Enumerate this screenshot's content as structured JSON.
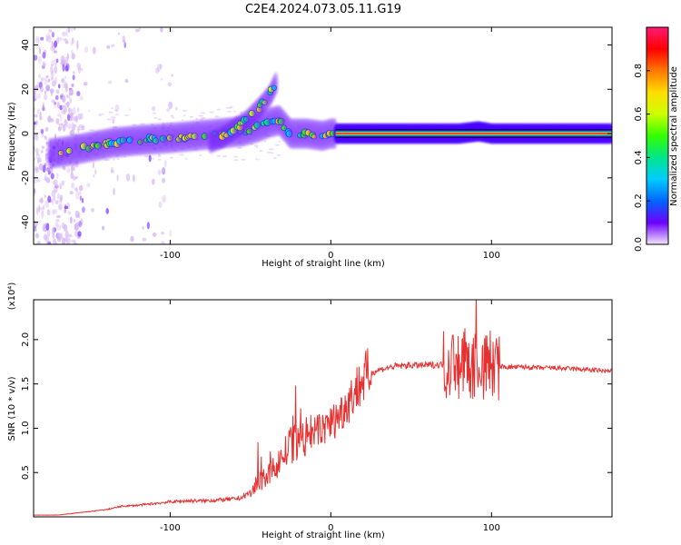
{
  "page_title": "C2E4.2024.073.05.11.G19",
  "chart_data": [
    {
      "type": "heatmap",
      "title": "C2E4.2024.073.05.11.G19",
      "xlabel": "Height of straight line (km)",
      "ylabel": "Frequency (Hz)",
      "xlim": [
        -185,
        175
      ],
      "ylim": [
        -50,
        48
      ],
      "x_ticks": [
        -100,
        0,
        100
      ],
      "x_tick_labels": [
        "-100",
        "0",
        "100"
      ],
      "y_ticks": [
        -40,
        -20,
        0,
        20,
        40
      ],
      "y_tick_labels": [
        "-40",
        "-20",
        "0",
        "20",
        "40"
      ],
      "colorbar": {
        "label": "Normalized spectral amplitude",
        "range": [
          0,
          1
        ],
        "ticks": [
          0.0,
          0.2,
          0.4,
          0.6,
          0.8
        ],
        "tick_labels": [
          "0.0",
          "0.2",
          "0.4",
          "0.6",
          "0.8"
        ],
        "colormap": [
          "#f5e6fa",
          "#6a00ff",
          "#0066ff",
          "#00ccff",
          "#00e68a",
          "#33ff00",
          "#ccff00",
          "#ffdd00",
          "#ff7700",
          "#ff0000",
          "#ff1a75"
        ]
      },
      "ridges": [
        {
          "x": [
            -175,
            -165,
            -150,
            -135,
            -120,
            -100,
            -85,
            -70,
            -55,
            -45,
            -38,
            -32,
            -25,
            -15,
            -5,
            0,
            5,
            20,
            50,
            80,
            92,
            100,
            140,
            175
          ],
          "y": [
            -9,
            -8,
            -6,
            -4,
            -3,
            -2,
            -1,
            0,
            1,
            3,
            5,
            6,
            0,
            0,
            -1,
            0,
            0,
            0,
            0,
            0,
            1,
            0,
            0,
            0
          ]
        },
        {
          "x": [
            -75,
            -68,
            -60,
            -52,
            -44,
            -38,
            -34
          ],
          "y": [
            -4,
            -2,
            2,
            6,
            12,
            17,
            23
          ]
        }
      ]
    },
    {
      "type": "line",
      "xlabel": "Height of straight line (km)",
      "ylabel": "SNR (10 * v/v)",
      "y_multiplier": "(x10⁴)",
      "xlim": [
        -185,
        175
      ],
      "ylim": [
        0,
        2.45
      ],
      "x_ticks": [
        -100,
        0,
        100
      ],
      "x_tick_labels": [
        "-100",
        "0",
        "100"
      ],
      "y_ticks": [
        0.5,
        1.0,
        1.5,
        2.0
      ],
      "y_tick_labels": [
        "0.5",
        "1.0",
        "1.5",
        "2.0"
      ],
      "series": [
        {
          "color": "#e83030",
          "x": [
            -185,
            -170,
            -160,
            -150,
            -140,
            -130,
            -120,
            -110,
            -100,
            -90,
            -80,
            -70,
            -60,
            -55,
            -50,
            -45,
            -40,
            -35,
            -30,
            -25,
            -20,
            -15,
            -10,
            -5,
            0,
            5,
            10,
            15,
            20,
            25,
            30,
            35,
            40,
            50,
            60,
            70,
            80,
            90,
            95,
            100,
            105,
            110,
            120,
            130,
            140,
            150,
            160,
            175
          ],
          "y": [
            0.02,
            0.02,
            0.04,
            0.06,
            0.08,
            0.12,
            0.13,
            0.15,
            0.17,
            0.18,
            0.18,
            0.19,
            0.2,
            0.22,
            0.28,
            0.38,
            0.45,
            0.55,
            0.68,
            0.8,
            0.85,
            0.9,
            0.95,
            1.0,
            1.05,
            1.15,
            1.28,
            1.42,
            1.55,
            1.62,
            1.66,
            1.68,
            1.7,
            1.71,
            1.71,
            1.72,
            1.72,
            1.73,
            1.7,
            1.72,
            1.7,
            1.69,
            1.69,
            1.68,
            1.68,
            1.67,
            1.66,
            1.64
          ]
        }
      ]
    }
  ]
}
